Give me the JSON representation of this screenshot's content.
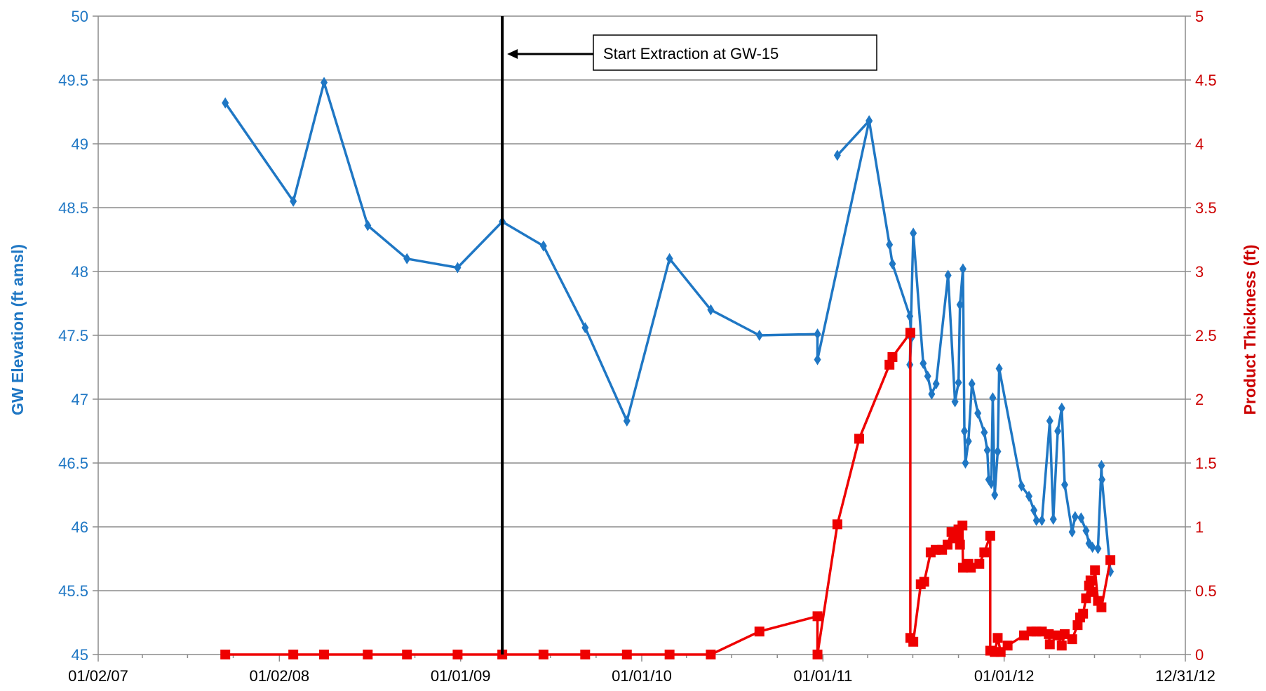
{
  "chart_data": {
    "type": "line",
    "x_axis": {
      "type": "date",
      "min": "2007-01-02",
      "max": "2012-12-31",
      "tick_labels": [
        "01/02/07",
        "01/02/08",
        "01/01/09",
        "01/01/10",
        "01/01/11",
        "01/01/12",
        "12/31/12"
      ],
      "tick_dates": [
        "2007-01-02",
        "2008-01-02",
        "2009-01-01",
        "2010-01-01",
        "2011-01-01",
        "2012-01-01",
        "2012-12-31"
      ]
    },
    "y_left": {
      "label": "GW Elevation (ft amsl)",
      "min": 45,
      "max": 50,
      "step": 0.5,
      "tick_labels": [
        "45",
        "45.5",
        "46",
        "46.5",
        "47",
        "47.5",
        "48",
        "48.5",
        "49",
        "49.5",
        "50"
      ],
      "color": "#1f77c4"
    },
    "y_right": {
      "label": "Product  Thickness (ft)",
      "min": 0,
      "max": 5,
      "step": 0.5,
      "tick_labels": [
        "0",
        "0.5",
        "1",
        "1.5",
        "2",
        "2.5",
        "3",
        "3.5",
        "4",
        "4.5",
        "5"
      ],
      "color": "#cc0000"
    },
    "grid": "horizontal",
    "series": [
      {
        "axis": "left",
        "color": "#1f77c4",
        "marker": "diamond",
        "points": [
          [
            "2007-09-15",
            49.32
          ],
          [
            "2008-01-30",
            48.55
          ],
          [
            "2008-04-01",
            49.48
          ],
          [
            "2008-06-28",
            48.36
          ],
          [
            "2008-09-15",
            48.1
          ],
          [
            "2008-12-26",
            48.03
          ],
          [
            "2009-03-26",
            48.39
          ],
          [
            "2009-06-17",
            48.2
          ],
          [
            "2009-09-09",
            47.56
          ],
          [
            "2009-12-02",
            46.83
          ],
          [
            "2010-02-26",
            48.1
          ],
          [
            "2010-05-20",
            47.7
          ],
          [
            "2010-08-26",
            47.5
          ],
          [
            "2010-12-21",
            47.51
          ],
          [
            "2010-12-21",
            47.31
          ],
          [
            "2011-04-04",
            49.18
          ],
          [
            "2011-01-30",
            48.91
          ],
          [
            "2011-04-04",
            49.18
          ],
          [
            "2011-05-15",
            48.21
          ],
          [
            "2011-05-21",
            48.06
          ],
          [
            "2011-06-25",
            47.65
          ],
          [
            "2011-06-28",
            47.48
          ],
          [
            "2011-06-25",
            47.27
          ],
          [
            "2011-07-02",
            48.3
          ],
          [
            "2011-07-22",
            47.28
          ],
          [
            "2011-07-31",
            47.18
          ],
          [
            "2011-08-08",
            47.04
          ],
          [
            "2011-08-17",
            47.12
          ],
          [
            "2011-09-10",
            47.97
          ],
          [
            "2011-09-24",
            46.98
          ],
          [
            "2011-10-01",
            47.13
          ],
          [
            "2011-10-04",
            47.74
          ],
          [
            "2011-10-10",
            48.02
          ],
          [
            "2011-10-13",
            46.75
          ],
          [
            "2011-10-15",
            46.5
          ],
          [
            "2011-10-21",
            46.67
          ],
          [
            "2011-10-28",
            47.12
          ],
          [
            "2011-11-09",
            46.89
          ],
          [
            "2011-11-22",
            46.74
          ],
          [
            "2011-11-28",
            46.6
          ],
          [
            "2011-12-01",
            46.37
          ],
          [
            "2011-12-06",
            46.34
          ],
          [
            "2011-12-09",
            47.01
          ],
          [
            "2011-12-13",
            46.25
          ],
          [
            "2011-12-19",
            46.59
          ],
          [
            "2011-12-22",
            47.24
          ],
          [
            "2012-02-05",
            46.32
          ],
          [
            "2012-02-20",
            46.24
          ],
          [
            "2012-03-01",
            46.13
          ],
          [
            "2012-03-06",
            46.05
          ],
          [
            "2012-03-17",
            46.05
          ],
          [
            "2012-04-02",
            46.83
          ],
          [
            "2012-04-09",
            46.06
          ],
          [
            "2012-04-18",
            46.75
          ],
          [
            "2012-04-26",
            46.93
          ],
          [
            "2012-05-02",
            46.33
          ],
          [
            "2012-05-17",
            45.96
          ],
          [
            "2012-05-23",
            46.08
          ],
          [
            "2012-06-04",
            46.07
          ],
          [
            "2012-06-14",
            45.97
          ],
          [
            "2012-06-20",
            45.87
          ],
          [
            "2012-06-27",
            45.84
          ],
          [
            "2012-07-08",
            45.83
          ],
          [
            "2012-07-15",
            46.48
          ],
          [
            "2012-07-16",
            46.37
          ],
          [
            "2012-08-02",
            45.65
          ]
        ]
      },
      {
        "axis": "right",
        "color": "#ee0000",
        "marker": "square",
        "points": [
          [
            "2007-09-15",
            0
          ],
          [
            "2008-01-30",
            0
          ],
          [
            "2008-04-01",
            0
          ],
          [
            "2008-06-28",
            0
          ],
          [
            "2008-09-15",
            0
          ],
          [
            "2008-12-26",
            0
          ],
          [
            "2009-03-26",
            0
          ],
          [
            "2009-06-17",
            0
          ],
          [
            "2009-09-09",
            0
          ],
          [
            "2009-12-02",
            0
          ],
          [
            "2010-02-26",
            0
          ],
          [
            "2010-05-20",
            0
          ],
          [
            "2010-08-26",
            0.18
          ],
          [
            "2010-12-21",
            0.3
          ],
          [
            "2010-12-21",
            0
          ],
          [
            "2011-01-30",
            1.02
          ],
          [
            "2011-03-15",
            1.69
          ],
          [
            "2011-05-15",
            2.27
          ],
          [
            "2011-05-21",
            2.33
          ],
          [
            "2011-06-26",
            2.52
          ],
          [
            "2011-06-26",
            0.13
          ],
          [
            "2011-07-02",
            0.1
          ],
          [
            "2011-07-17",
            0.55
          ],
          [
            "2011-07-24",
            0.57
          ],
          [
            "2011-08-06",
            0.8
          ],
          [
            "2011-08-16",
            0.82
          ],
          [
            "2011-08-29",
            0.82
          ],
          [
            "2011-09-09",
            0.86
          ],
          [
            "2011-09-17",
            0.96
          ],
          [
            "2011-09-24",
            0.91
          ],
          [
            "2011-10-01",
            0.98
          ],
          [
            "2011-10-04",
            0.86
          ],
          [
            "2011-10-09",
            1.01
          ],
          [
            "2011-10-10",
            0.68
          ],
          [
            "2011-10-21",
            0.71
          ],
          [
            "2011-10-26",
            0.68
          ],
          [
            "2011-11-12",
            0.71
          ],
          [
            "2011-11-22",
            0.8
          ],
          [
            "2011-12-04",
            0.93
          ],
          [
            "2011-12-04",
            0.03
          ],
          [
            "2011-12-13",
            0.02
          ],
          [
            "2011-12-19",
            0.13
          ],
          [
            "2011-12-25",
            0.02
          ],
          [
            "2012-01-08",
            0.07
          ],
          [
            "2012-02-10",
            0.15
          ],
          [
            "2012-02-25",
            0.18
          ],
          [
            "2012-03-06",
            0.18
          ],
          [
            "2012-03-17",
            0.18
          ],
          [
            "2012-03-31",
            0.16
          ],
          [
            "2012-04-02",
            0.08
          ],
          [
            "2012-04-18",
            0.15
          ],
          [
            "2012-04-26",
            0.07
          ],
          [
            "2012-05-02",
            0.16
          ],
          [
            "2012-05-17",
            0.12
          ],
          [
            "2012-05-28",
            0.23
          ],
          [
            "2012-06-02",
            0.29
          ],
          [
            "2012-06-08",
            0.32
          ],
          [
            "2012-06-14",
            0.44
          ],
          [
            "2012-06-20",
            0.54
          ],
          [
            "2012-06-23",
            0.58
          ],
          [
            "2012-06-27",
            0.49
          ],
          [
            "2012-07-02",
            0.66
          ],
          [
            "2012-07-08",
            0.42
          ],
          [
            "2012-07-15",
            0.37
          ],
          [
            "2012-08-02",
            0.74
          ]
        ]
      }
    ],
    "annotations": [
      {
        "text": "Start Extraction at GW-15",
        "x": "2009-03-26",
        "type": "vertical-line-with-arrow"
      }
    ]
  }
}
